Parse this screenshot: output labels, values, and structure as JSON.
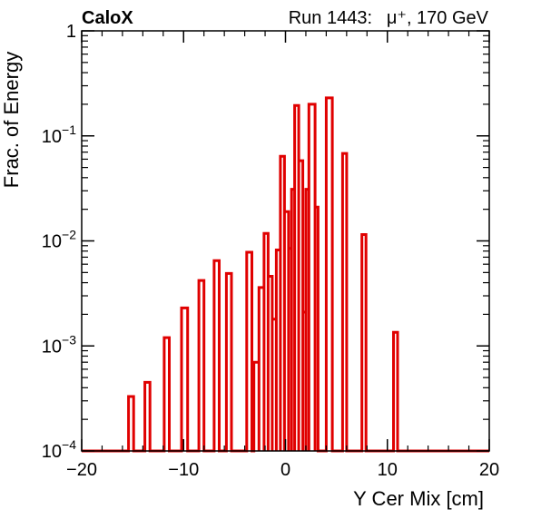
{
  "header": {
    "experiment": "CaloX",
    "run_label": "Run 1443:",
    "beam": "μ⁺, 170 GeV"
  },
  "chart_data": {
    "type": "histogram-step",
    "ylabel": "Frac. of Energy",
    "xlabel": "Y Cer Mix [cm]",
    "y_scale": "log",
    "xlim": [
      -20,
      20
    ],
    "ylim": [
      0.0001,
      1
    ],
    "x_ticks": [
      -20,
      -10,
      0,
      10,
      20
    ],
    "x_tick_labels": [
      "−20",
      "−10",
      "0",
      "10",
      "20"
    ],
    "y_ticks": [
      {
        "value": 1,
        "base": "1",
        "exp": ""
      },
      {
        "value": 0.1,
        "base": "10",
        "exp": "−1"
      },
      {
        "value": 0.01,
        "base": "10",
        "exp": "−2"
      },
      {
        "value": 0.001,
        "base": "10",
        "exp": "−3"
      },
      {
        "value": 0.0001,
        "base": "10",
        "exp": "−4"
      }
    ],
    "series": [
      {
        "color": "#e00000",
        "bins": [
          {
            "x0": -15.4,
            "x1": -14.9,
            "y": 0.00033
          },
          {
            "x0": -13.8,
            "x1": -13.3,
            "y": 0.00045
          },
          {
            "x0": -11.9,
            "x1": -11.4,
            "y": 0.0012
          },
          {
            "x0": -10.2,
            "x1": -9.6,
            "y": 0.0023
          },
          {
            "x0": -8.5,
            "x1": -8.0,
            "y": 0.0042
          },
          {
            "x0": -7.0,
            "x1": -6.5,
            "y": 0.0065
          },
          {
            "x0": -5.8,
            "x1": -5.3,
            "y": 0.0049
          },
          {
            "x0": -3.8,
            "x1": -3.3,
            "y": 0.0078
          },
          {
            "x0": -3.1,
            "x1": -2.6,
            "y": 0.0007
          },
          {
            "x0": -2.6,
            "x1": -2.1,
            "y": 0.0036
          },
          {
            "x0": -2.1,
            "x1": -1.7,
            "y": 0.0118
          },
          {
            "x0": -1.7,
            "x1": -1.3,
            "y": 0.0046
          },
          {
            "x0": -1.3,
            "x1": -0.9,
            "y": 0.0018
          },
          {
            "x0": -0.9,
            "x1": -0.5,
            "y": 0.0082
          },
          {
            "x0": -0.5,
            "x1": -0.1,
            "y": 0.064
          },
          {
            "x0": -0.1,
            "x1": 0.3,
            "y": 0.019
          },
          {
            "x0": 0.3,
            "x1": 0.6,
            "y": 0.0085
          },
          {
            "x0": 0.6,
            "x1": 0.9,
            "y": 0.031
          },
          {
            "x0": 0.9,
            "x1": 1.3,
            "y": 0.195
          },
          {
            "x0": 1.3,
            "x1": 1.7,
            "y": 0.058
          },
          {
            "x0": 1.7,
            "x1": 2.0,
            "y": 0.0021
          },
          {
            "x0": 2.0,
            "x1": 2.3,
            "y": 0.031
          },
          {
            "x0": 2.3,
            "x1": 2.9,
            "y": 0.2
          },
          {
            "x0": 2.9,
            "x1": 3.2,
            "y": 0.021
          },
          {
            "x0": 4.0,
            "x1": 4.6,
            "y": 0.23
          },
          {
            "x0": 5.6,
            "x1": 6.0,
            "y": 0.068
          },
          {
            "x0": 7.5,
            "x1": 7.9,
            "y": 0.0115
          },
          {
            "x0": 10.6,
            "x1": 11.0,
            "y": 0.00135
          }
        ]
      }
    ]
  }
}
